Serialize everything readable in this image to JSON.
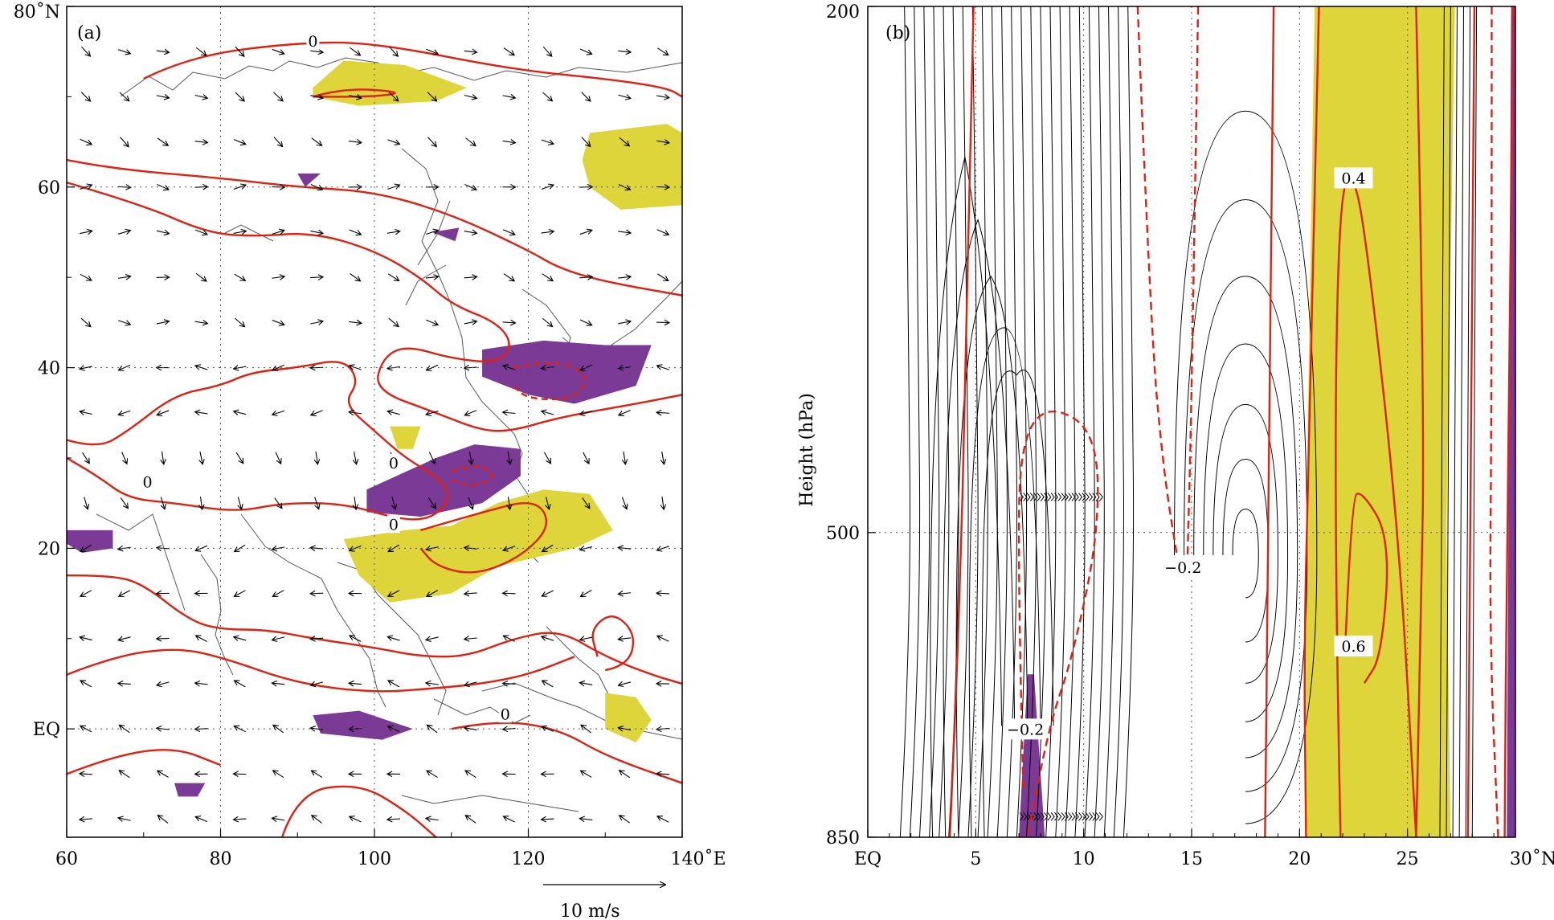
{
  "chart_data": [
    {
      "type": "map",
      "panel_label": "(a)",
      "xlabel": "",
      "ylabel": "",
      "xlim": [
        60,
        140
      ],
      "ylim": [
        -12,
        80
      ],
      "x_ticks": [
        60,
        80,
        100,
        120,
        140
      ],
      "x_tick_labels": [
        "60",
        "80",
        "100",
        "120",
        "140˚E"
      ],
      "y_ticks": [
        0,
        20,
        40,
        60,
        80
      ],
      "y_tick_labels": [
        "EQ",
        "20",
        "40",
        "60",
        "80˚N"
      ],
      "grid": "dotted at 20° intervals",
      "reference_vector": {
        "label": "10 m/s",
        "magnitude": 10
      },
      "colors": {
        "positive_shading": "#ded53a",
        "negative_shading": "#7a3a96",
        "contour": "#e02010",
        "vector": "#000000"
      },
      "contour_labels": [
        {
          "text": "0",
          "lon": 92,
          "lat": 76
        },
        {
          "text": "0",
          "lon": 102.5,
          "lat": 29.3
        },
        {
          "text": "0",
          "lon": 70.5,
          "lat": 27.2
        },
        {
          "text": "0",
          "lon": 102.5,
          "lat": 22.5
        },
        {
          "text": "0",
          "lon": 117,
          "lat": 1.5
        }
      ]
    },
    {
      "type": "streamline",
      "panel_label": "(b)",
      "xlabel": "",
      "ylabel": "Height (hPa)",
      "xlim": [
        0,
        30
      ],
      "ylim": [
        850,
        200
      ],
      "x_ticks": [
        0,
        5,
        10,
        15,
        20,
        25,
        30
      ],
      "x_tick_labels": [
        "EQ",
        "5",
        "10",
        "15",
        "20",
        "25",
        "30˚N"
      ],
      "y_ticks": [
        200,
        500,
        850
      ],
      "y_tick_labels": [
        "200",
        "500",
        "850"
      ],
      "grid": "dotted",
      "colors": {
        "positive_shading": "#ded53a",
        "negative_shading": "#7a3a96",
        "contour": "#e02010",
        "streamline": "#000000"
      },
      "contour_labels": [
        {
          "text": "0.4",
          "lat": 22.5,
          "p": 270
        },
        {
          "text": "0.6",
          "lat": 22.5,
          "p": 610
        },
        {
          "text": "−0.2",
          "lat": 14.6,
          "p": 532
        },
        {
          "text": "−0.2",
          "lat": 7.3,
          "p": 705
        }
      ]
    }
  ]
}
